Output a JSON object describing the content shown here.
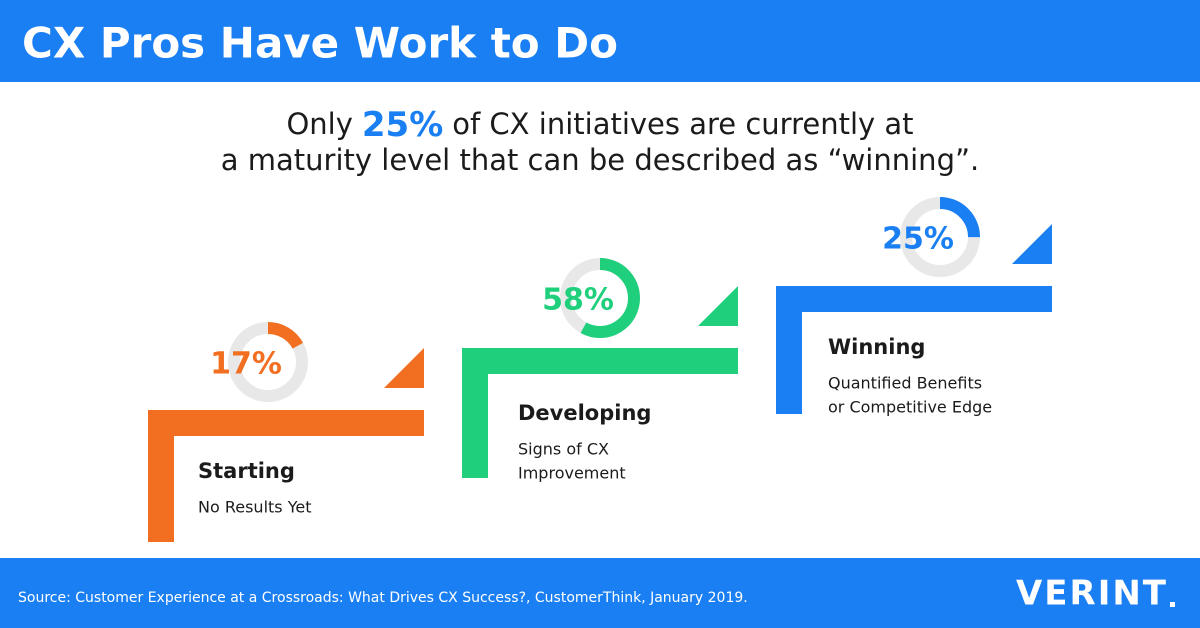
{
  "header": {
    "title": "CX Pros Have Work to Do"
  },
  "headline": {
    "before": "Only",
    "highlight": "25%",
    "after": "of CX initiatives are currently at",
    "line2": "a maturity level that can be described as “winning”."
  },
  "stages": [
    {
      "name": "Starting",
      "description": [
        "No Results Yet"
      ],
      "value": 17,
      "value_label": "17%",
      "color": "#f26f21"
    },
    {
      "name": "Developing",
      "description": [
        "Signs of CX",
        "Improvement"
      ],
      "value": 58,
      "value_label": "58%",
      "color": "#1fcf7c"
    },
    {
      "name": "Winning",
      "description": [
        "Quantified Benefits",
        "or Competitive Edge"
      ],
      "value": 25,
      "value_label": "25%",
      "color": "#1a7ff2"
    }
  ],
  "footer": {
    "source": "Source: Customer Experience at a Crossroads: What Drives CX Success?, CustomerThink, January 2019.",
    "logo": "VERINT"
  }
}
